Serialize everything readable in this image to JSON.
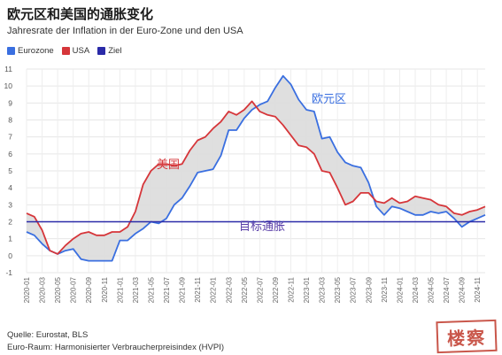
{
  "header": {
    "title": "欧元区和美国的通胀变化",
    "subtitle": "Jahresrate der Inflation in der Euro-Zone und den USA"
  },
  "legend": [
    {
      "label": "Eurozone",
      "color": "#3a6fe0"
    },
    {
      "label": "USA",
      "color": "#d6363a"
    },
    {
      "label": "Ziel",
      "color": "#2a2aa8"
    }
  ],
  "annotations": {
    "euro_label": "欧元区",
    "usa_label": "美国",
    "target_label": "目标通胀"
  },
  "footer": {
    "source": "Quelle: Eurostat, BLS",
    "note": "Euro-Raum: Harmonisierter Verbraucherpreisindex (HVPI)"
  },
  "stamp": "楼 察",
  "colors": {
    "eurozone": "#3a6fe0",
    "usa": "#d6363a",
    "target": "#2a2aa8",
    "fill": "#dcdcdc",
    "grid": "#e6e6e6"
  },
  "chart_data": {
    "type": "line",
    "ylim": [
      -1,
      11
    ],
    "yticks": [
      -1,
      0,
      1,
      2,
      3,
      4,
      5,
      6,
      7,
      8,
      9,
      10,
      11
    ],
    "xticks": [
      "2020-01",
      "2020-03",
      "2020-05",
      "2020-07",
      "2020-09",
      "2020-11",
      "2021-01",
      "2021-03",
      "2021-05",
      "2021-07",
      "2021-09",
      "2021-11",
      "2022-01",
      "2022-03",
      "2022-05",
      "2022-07",
      "2022-09",
      "2022-11",
      "2023-01",
      "2023-03",
      "2023-05",
      "2023-07",
      "2023-09",
      "2023-11",
      "2024-01",
      "2024-03",
      "2024-05",
      "2024-07",
      "2024-09",
      "2024-11"
    ],
    "x": [
      "2020-01",
      "2020-02",
      "2020-03",
      "2020-04",
      "2020-05",
      "2020-06",
      "2020-07",
      "2020-08",
      "2020-09",
      "2020-10",
      "2020-11",
      "2020-12",
      "2021-01",
      "2021-02",
      "2021-03",
      "2021-04",
      "2021-05",
      "2021-06",
      "2021-07",
      "2021-08",
      "2021-09",
      "2021-10",
      "2021-11",
      "2021-12",
      "2022-01",
      "2022-02",
      "2022-03",
      "2022-04",
      "2022-05",
      "2022-06",
      "2022-07",
      "2022-08",
      "2022-09",
      "2022-10",
      "2022-11",
      "2022-12",
      "2023-01",
      "2023-02",
      "2023-03",
      "2023-04",
      "2023-05",
      "2023-06",
      "2023-07",
      "2023-08",
      "2023-09",
      "2023-10",
      "2023-11",
      "2023-12",
      "2024-01",
      "2024-02",
      "2024-03",
      "2024-04",
      "2024-05",
      "2024-06",
      "2024-07",
      "2024-08",
      "2024-09",
      "2024-10",
      "2024-11",
      "2024-12"
    ],
    "series": [
      {
        "name": "Eurozone",
        "values": [
          1.4,
          1.2,
          0.7,
          0.3,
          0.1,
          0.3,
          0.4,
          -0.2,
          -0.3,
          -0.3,
          -0.3,
          -0.3,
          0.9,
          0.9,
          1.3,
          1.6,
          2.0,
          1.9,
          2.2,
          3.0,
          3.4,
          4.1,
          4.9,
          5.0,
          5.1,
          5.9,
          7.4,
          7.4,
          8.1,
          8.6,
          8.9,
          9.1,
          9.9,
          10.6,
          10.1,
          9.2,
          8.6,
          8.5,
          6.9,
          7.0,
          6.1,
          5.5,
          5.3,
          5.2,
          4.3,
          2.9,
          2.4,
          2.9,
          2.8,
          2.6,
          2.4,
          2.4,
          2.6,
          2.5,
          2.6,
          2.2,
          1.7,
          2.0,
          2.2,
          2.4
        ]
      },
      {
        "name": "USA",
        "values": [
          2.5,
          2.3,
          1.5,
          0.3,
          0.1,
          0.6,
          1.0,
          1.3,
          1.4,
          1.2,
          1.2,
          1.4,
          1.4,
          1.7,
          2.6,
          4.2,
          5.0,
          5.4,
          5.4,
          5.3,
          5.4,
          6.2,
          6.8,
          7.0,
          7.5,
          7.9,
          8.5,
          8.3,
          8.6,
          9.1,
          8.5,
          8.3,
          8.2,
          7.7,
          7.1,
          6.5,
          6.4,
          6.0,
          5.0,
          4.9,
          4.0,
          3.0,
          3.2,
          3.7,
          3.7,
          3.2,
          3.1,
          3.4,
          3.1,
          3.2,
          3.5,
          3.4,
          3.3,
          3.0,
          2.9,
          2.5,
          2.4,
          2.6,
          2.7,
          2.9
        ]
      },
      {
        "name": "Ziel",
        "values": [
          2,
          2,
          2,
          2,
          2,
          2,
          2,
          2,
          2,
          2,
          2,
          2,
          2,
          2,
          2,
          2,
          2,
          2,
          2,
          2,
          2,
          2,
          2,
          2,
          2,
          2,
          2,
          2,
          2,
          2,
          2,
          2,
          2,
          2,
          2,
          2,
          2,
          2,
          2,
          2,
          2,
          2,
          2,
          2,
          2,
          2,
          2,
          2,
          2,
          2,
          2,
          2,
          2,
          2,
          2,
          2,
          2,
          2,
          2,
          2
        ]
      }
    ],
    "grid": true,
    "legend_position": "top-left"
  }
}
